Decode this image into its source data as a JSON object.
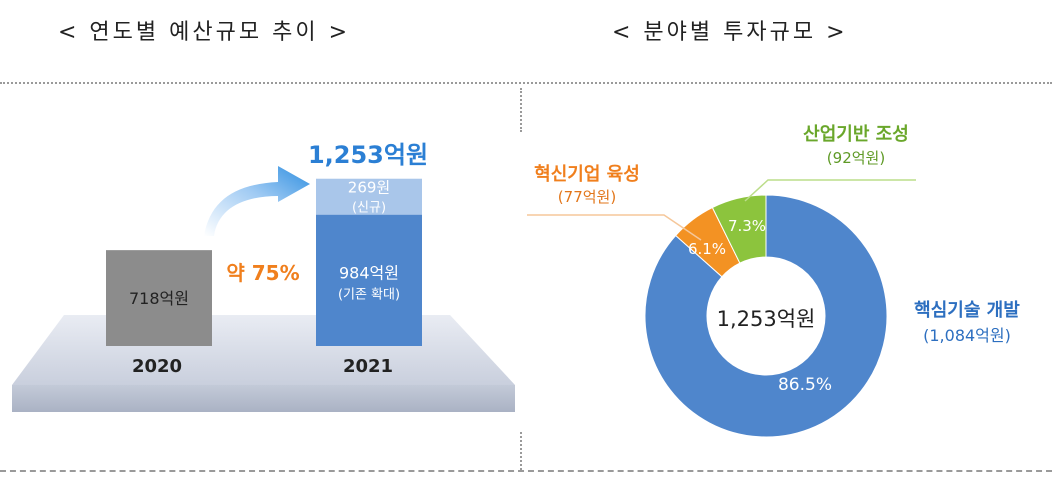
{
  "titles": {
    "left": "< 연도별 예산규모 추이 >",
    "right": "< 분야별 투자규모 >"
  },
  "chart_data": [
    {
      "type": "bar",
      "title": "< 연도별 예산규모 추이 >",
      "categories": [
        "2020",
        "2021"
      ],
      "unit": "억원",
      "ylim": [
        0,
        1253
      ],
      "series": [
        {
          "key": "2020",
          "values": [
            718,
            0
          ],
          "labels": [
            "718억원",
            ""
          ],
          "color": "#8c8c8c"
        },
        {
          "key": "expand",
          "values": [
            0,
            984
          ],
          "labels": [
            "",
            "984억원"
          ],
          "sublabels": [
            "",
            "(기존 확대)"
          ],
          "color": "#4f86cc"
        },
        {
          "key": "new",
          "values": [
            0,
            269
          ],
          "labels": [
            "",
            "269원"
          ],
          "sublabels": [
            "",
            "(신규)"
          ],
          "color": "#a9c6ea"
        }
      ],
      "total_label": "1,253억원",
      "growth_label": "약 75%",
      "colors": {
        "total": "#2b7fd4",
        "growth": "#f07f1d",
        "arrow": "#2f8fe0"
      }
    },
    {
      "type": "pie",
      "title": "< 분야별 투자규모 >",
      "center_label": "1,253억원",
      "slices": [
        {
          "name": "핵심기술 개발",
          "amount": "(1,084억원)",
          "value": 86.5,
          "label": "86.5%",
          "color": "#4f86cc",
          "name_color": "#2d6fc0"
        },
        {
          "name": "혁신기업 육성",
          "amount": "(77억원)",
          "value": 6.1,
          "label": "6.1%",
          "color": "#f39223",
          "name_color": "#f07f1d"
        },
        {
          "name": "산업기반 조성",
          "amount": "(92억원)",
          "value": 7.3,
          "label": "7.3%",
          "color": "#8cc43d",
          "name_color": "#6aa72b"
        }
      ]
    }
  ]
}
